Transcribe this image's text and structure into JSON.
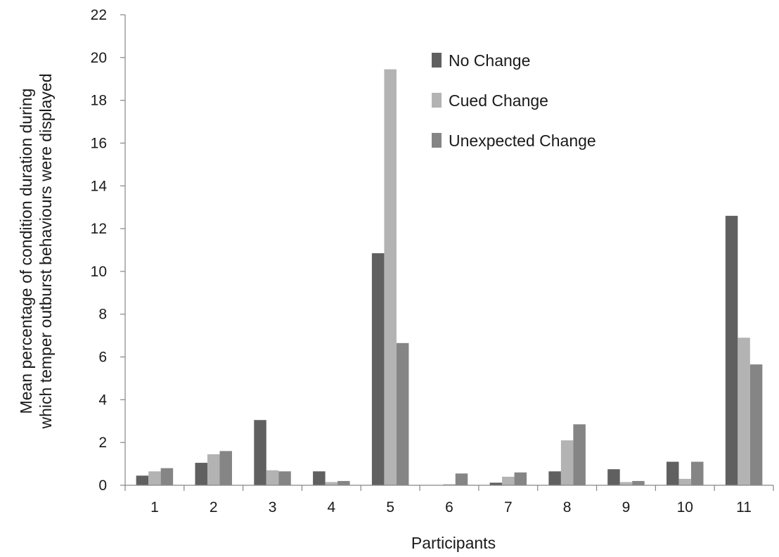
{
  "chart_data": {
    "type": "bar",
    "xlabel": "Participants",
    "ylabel_lines": [
      "Mean percentage of condition duration during",
      "which temper outburst  behaviours were displayed"
    ],
    "ylim": [
      0,
      22
    ],
    "yticks": [
      0,
      2,
      4,
      6,
      8,
      10,
      12,
      14,
      16,
      18,
      20,
      22
    ],
    "categories": [
      "1",
      "2",
      "3",
      "4",
      "5",
      "6",
      "7",
      "8",
      "9",
      "10",
      "11"
    ],
    "grid": false,
    "legend_position": "top-right",
    "series": [
      {
        "name": "No Change",
        "color": "#606060",
        "values": [
          0.45,
          1.05,
          3.05,
          0.65,
          10.85,
          0.0,
          0.12,
          0.65,
          0.75,
          1.1,
          12.6
        ]
      },
      {
        "name": "Cued Change",
        "color": "#b3b3b3",
        "values": [
          0.65,
          1.45,
          0.7,
          0.15,
          19.45,
          0.05,
          0.4,
          2.1,
          0.15,
          0.3,
          6.9
        ]
      },
      {
        "name": "Unexpected Change",
        "color": "#858585",
        "values": [
          0.8,
          1.6,
          0.65,
          0.2,
          6.65,
          0.55,
          0.6,
          2.85,
          0.2,
          1.1,
          5.65
        ]
      }
    ]
  }
}
